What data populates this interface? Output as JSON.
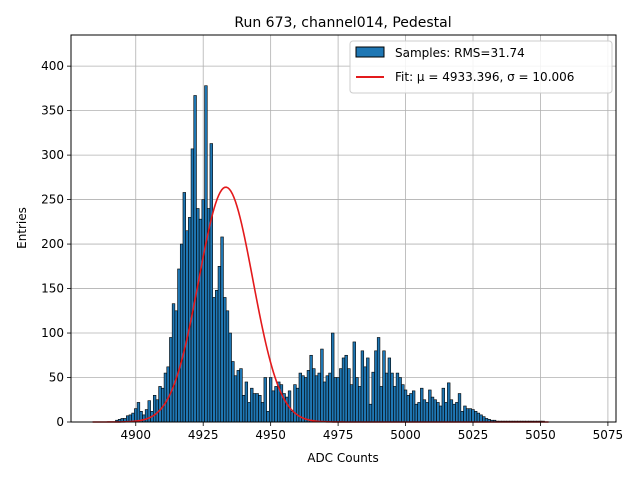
{
  "chart_data": {
    "type": "bar",
    "title": "Run 673, channel014, Pedestal",
    "xlabel": "ADC Counts",
    "ylabel": "Entries",
    "xlim": [
      4876,
      5078
    ],
    "ylim": [
      0,
      435
    ],
    "xticks": [
      4900,
      4925,
      4950,
      4975,
      5000,
      5025,
      5050,
      5075
    ],
    "yticks": [
      0,
      50,
      100,
      150,
      200,
      250,
      300,
      350,
      400
    ],
    "grid": true,
    "legend_position": "upper right",
    "series": [
      {
        "name": "Samples: RMS=31.74",
        "kind": "histogram",
        "color": "#1f77b4",
        "edgecolor": "#000000",
        "x": [
          4893,
          4894,
          4895,
          4896,
          4897,
          4898,
          4899,
          4900,
          4901,
          4902,
          4903,
          4904,
          4905,
          4906,
          4907,
          4908,
          4909,
          4910,
          4911,
          4912,
          4913,
          4914,
          4915,
          4916,
          4917,
          4918,
          4919,
          4920,
          4921,
          4922,
          4923,
          4924,
          4925,
          4926,
          4927,
          4928,
          4929,
          4930,
          4931,
          4932,
          4933,
          4934,
          4935,
          4936,
          4937,
          4938,
          4939,
          4940,
          4941,
          4942,
          4943,
          4944,
          4945,
          4946,
          4947,
          4948,
          4949,
          4950,
          4951,
          4952,
          4953,
          4954,
          4955,
          4956,
          4957,
          4958,
          4959,
          4960,
          4961,
          4962,
          4963,
          4964,
          4965,
          4966,
          4967,
          4968,
          4969,
          4970,
          4971,
          4972,
          4973,
          4974,
          4975,
          4976,
          4977,
          4978,
          4979,
          4980,
          4981,
          4982,
          4983,
          4984,
          4985,
          4986,
          4987,
          4988,
          4989,
          4990,
          4991,
          4992,
          4993,
          4994,
          4995,
          4996,
          4997,
          4998,
          4999,
          5000,
          5001,
          5002,
          5003,
          5004,
          5005,
          5006,
          5007,
          5008,
          5009,
          5010,
          5011,
          5012,
          5013,
          5014,
          5015,
          5016,
          5017,
          5018,
          5019,
          5020,
          5021,
          5022,
          5023,
          5024,
          5025,
          5026,
          5027,
          5028,
          5029,
          5030,
          5031,
          5032,
          5033,
          5034,
          5035,
          5036,
          5037,
          5038,
          5039,
          5040,
          5041,
          5042,
          5043,
          5044,
          5045,
          5046,
          5047,
          5048,
          5049,
          5050,
          5051
        ],
        "values": [
          2,
          3,
          4,
          4,
          7,
          8,
          10,
          15,
          22,
          12,
          8,
          14,
          24,
          12,
          30,
          25,
          40,
          38,
          55,
          62,
          95,
          133,
          125,
          172,
          200,
          258,
          215,
          230,
          307,
          367,
          240,
          228,
          250,
          378,
          240,
          313,
          140,
          148,
          175,
          208,
          140,
          125,
          100,
          68,
          52,
          58,
          60,
          30,
          45,
          22,
          38,
          32,
          32,
          30,
          22,
          50,
          12,
          50,
          35,
          40,
          45,
          42,
          32,
          28,
          35,
          12,
          42,
          38,
          55,
          52,
          50,
          58,
          75,
          60,
          52,
          55,
          82,
          45,
          52,
          55,
          100,
          50,
          50,
          60,
          72,
          75,
          60,
          42,
          90,
          50,
          40,
          80,
          62,
          72,
          20,
          56,
          80,
          95,
          40,
          80,
          55,
          72,
          55,
          40,
          55,
          50,
          42,
          36,
          30,
          32,
          35,
          20,
          22,
          38,
          25,
          22,
          36,
          28,
          25,
          22,
          18,
          38,
          22,
          44,
          25,
          20,
          22,
          32,
          12,
          18,
          15,
          15,
          14,
          12,
          10,
          8,
          6,
          4,
          3,
          2,
          2,
          1,
          1,
          1,
          1,
          1,
          1,
          1,
          1,
          1,
          1,
          1,
          1,
          1,
          1,
          1,
          1,
          1,
          1
        ]
      },
      {
        "name": "Fit: μ = 4933.396, σ = 10.006",
        "kind": "gaussian",
        "color": "#e31a1c",
        "mu": 4933.396,
        "sigma": 10.006,
        "amplitude": 264,
        "x_range": [
          4884,
          5053
        ]
      }
    ]
  }
}
